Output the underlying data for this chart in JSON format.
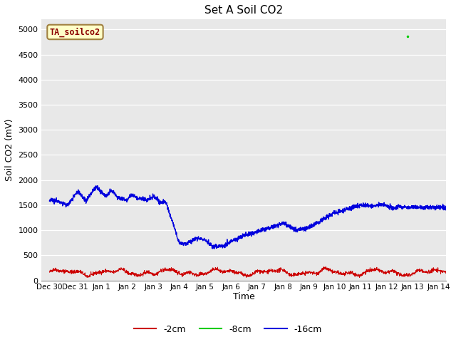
{
  "title": "Set A Soil CO2",
  "ylabel": "Soil CO2 (mV)",
  "xlabel": "Time",
  "ylim": [
    0,
    5200
  ],
  "yticks": [
    0,
    500,
    1000,
    1500,
    2000,
    2500,
    3000,
    3500,
    4000,
    4500,
    5000
  ],
  "bg_color": "#e8e8e8",
  "legend_label": "TA_soilco2",
  "legend_fg": "#8b0000",
  "legend_bg": "#ffffc8",
  "legend_border": "#a08040",
  "line_colors": {
    "2cm": "#cc0000",
    "8cm": "#00cc00",
    "16cm": "#0000dd"
  },
  "legend_entries": [
    "-2cm",
    "-8cm",
    "-16cm"
  ],
  "green_dot_x": 13.8,
  "green_dot_y": 4870,
  "tick_labels": [
    "Dec 30",
    "Dec 31",
    "Jan 1",
    "Jan 2",
    "Jan 3",
    "Jan 4",
    "Jan 5",
    "Jan 6",
    "Jan 7",
    "Jan 8",
    "Jan 9",
    "Jan 10",
    "Jan 11",
    "Jan 12",
    "Jan 13",
    "Jan 14"
  ],
  "xlim": [
    -0.3,
    15.3
  ]
}
